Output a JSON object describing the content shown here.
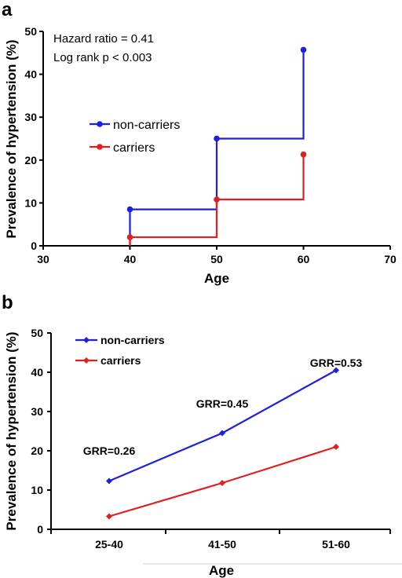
{
  "chart_data": [
    {
      "panel_label": "a",
      "type": "step",
      "xlabel": "Age",
      "ylabel": "Prevalence of hypertension (%)",
      "xlim": [
        30,
        70
      ],
      "ylim": [
        0,
        50
      ],
      "xticks": [
        30,
        40,
        50,
        60,
        70
      ],
      "yticks": [
        0,
        10,
        20,
        30,
        40,
        50
      ],
      "annotations": [
        "Hazard ratio = 0.41",
        "Log rank p < 0.003"
      ],
      "legend_position": "center-left",
      "series": [
        {
          "name": "non-carriers",
          "color": "#1f1fe0",
          "x": [
            40,
            50,
            60
          ],
          "y": [
            8.5,
            25,
            45.7
          ]
        },
        {
          "name": "carriers",
          "color": "#e01f1f",
          "x": [
            40,
            50,
            60
          ],
          "y": [
            2,
            10.8,
            21.3
          ]
        }
      ]
    },
    {
      "panel_label": "b",
      "type": "line",
      "xlabel": "Age",
      "ylabel": "Prevalence of hypertension (%)",
      "categories": [
        "25-40",
        "41-50",
        "51-60"
      ],
      "ylim": [
        0,
        50
      ],
      "yticks": [
        0,
        10,
        20,
        30,
        40,
        50
      ],
      "point_labels": [
        "GRR=0.26",
        "GRR=0.45",
        "GRR=0.53"
      ],
      "legend_position": "top-left",
      "series": [
        {
          "name": "non-carriers",
          "color": "#1f1fe0",
          "values": [
            12.3,
            24.5,
            40.5
          ]
        },
        {
          "name": "carriers",
          "color": "#e01f1f",
          "values": [
            3.3,
            11.8,
            21.0
          ]
        }
      ]
    }
  ]
}
